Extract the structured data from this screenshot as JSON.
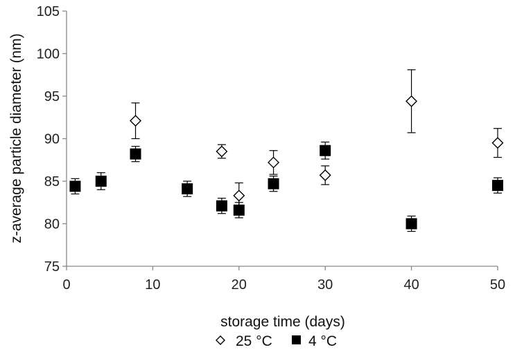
{
  "chart_data": {
    "type": "scatter",
    "title": "",
    "xlabel": "storage time (days)",
    "ylabel": "z-average particle diameter  (nm)",
    "xlim": [
      0,
      50
    ],
    "ylim": [
      75,
      105
    ],
    "xticks": [
      0,
      10,
      20,
      30,
      40,
      50
    ],
    "yticks": [
      75,
      80,
      85,
      90,
      95,
      100,
      105
    ],
    "grid": false,
    "legend_position": "bottom",
    "series": [
      {
        "name": "25 °C",
        "marker": "open-diamond",
        "color": "#000000",
        "points": [
          {
            "x": 8,
            "y": 92.1,
            "err": 2.1
          },
          {
            "x": 18,
            "y": 88.5,
            "err": 0.8
          },
          {
            "x": 20,
            "y": 83.3,
            "err": 1.5
          },
          {
            "x": 24,
            "y": 87.2,
            "err": 1.4
          },
          {
            "x": 30,
            "y": 85.7,
            "err": 1.1
          },
          {
            "x": 40,
            "y": 94.4,
            "err": 3.7
          },
          {
            "x": 50,
            "y": 89.5,
            "err": 1.7
          }
        ]
      },
      {
        "name": "4 °C",
        "marker": "filled-square",
        "color": "#000000",
        "points": [
          {
            "x": 1,
            "y": 84.4,
            "err": 0.9
          },
          {
            "x": 4,
            "y": 85.0,
            "err": 1.0
          },
          {
            "x": 8,
            "y": 88.2,
            "err": 0.9
          },
          {
            "x": 14,
            "y": 84.1,
            "err": 0.9
          },
          {
            "x": 18,
            "y": 82.1,
            "err": 0.9
          },
          {
            "x": 20,
            "y": 81.6,
            "err": 0.9
          },
          {
            "x": 24,
            "y": 84.7,
            "err": 0.9
          },
          {
            "x": 30,
            "y": 88.6,
            "err": 1.0
          },
          {
            "x": 40,
            "y": 80.0,
            "err": 0.9
          },
          {
            "x": 50,
            "y": 84.5,
            "err": 0.9
          }
        ]
      }
    ]
  }
}
